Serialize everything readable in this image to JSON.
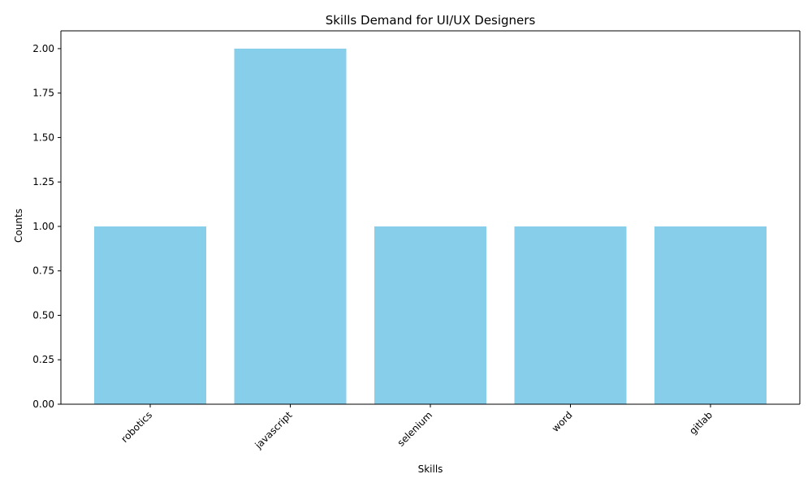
{
  "chart_data": {
    "type": "bar",
    "title": "Skills Demand for UI/UX Designers",
    "xlabel": "Skills",
    "ylabel": "Counts",
    "categories": [
      "robotics",
      "javascript",
      "selenium",
      "word",
      "gitlab"
    ],
    "values": [
      1,
      2,
      1,
      1,
      1
    ],
    "ylim": [
      0,
      2.1
    ],
    "yticks": [
      "0.00",
      "0.25",
      "0.50",
      "0.75",
      "1.00",
      "1.25",
      "1.50",
      "1.75",
      "2.00"
    ],
    "bar_color": "#87CEEB",
    "grid": false,
    "legend": "none"
  }
}
